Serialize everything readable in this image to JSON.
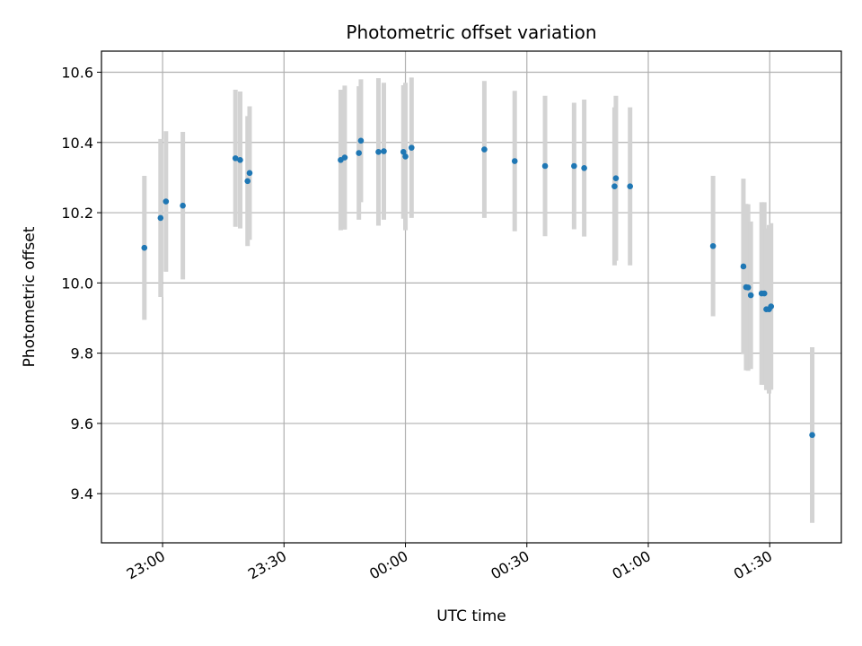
{
  "chart_data": {
    "type": "scatter",
    "title": "Photometric offset variation",
    "xlabel": "UTC time",
    "ylabel": "Photometric offset",
    "grid": true,
    "x_tick_labels": [
      "23:00",
      "23:30",
      "00:00",
      "00:30",
      "01:00",
      "01:30"
    ],
    "x_tick_minutes": [
      1380,
      1410,
      1440,
      1470,
      1500,
      1530
    ],
    "y_ticks": [
      "9.4",
      "9.6",
      "9.8",
      "10.0",
      "10.2",
      "10.4",
      "10.6"
    ],
    "y_tick_values": [
      9.4,
      9.6,
      9.8,
      10.0,
      10.2,
      10.4,
      10.6
    ],
    "xlim_minutes": [
      1364.9,
      1547.7
    ],
    "ylim": [
      9.26,
      10.66
    ],
    "marker_color": "#1f77b4",
    "errorbar_color": "#d3d3d3",
    "points": [
      {
        "t": "22:55:30",
        "y": 10.1,
        "err": 0.205
      },
      {
        "t": "22:59:30",
        "y": 10.185,
        "err": 0.225
      },
      {
        "t": "23:00:50",
        "y": 10.232,
        "err": 0.2
      },
      {
        "t": "23:05:00",
        "y": 10.22,
        "err": 0.21
      },
      {
        "t": "23:18:00",
        "y": 10.355,
        "err": 0.195
      },
      {
        "t": "23:19:10",
        "y": 10.35,
        "err": 0.195
      },
      {
        "t": "23:21:00",
        "y": 10.29,
        "err": 0.185
      },
      {
        "t": "23:21:30",
        "y": 10.313,
        "err": 0.19
      },
      {
        "t": "23:44:00",
        "y": 10.35,
        "err": 0.2
      },
      {
        "t": "23:45:00",
        "y": 10.357,
        "err": 0.205
      },
      {
        "t": "23:48:30",
        "y": 10.37,
        "err": 0.19
      },
      {
        "t": "23:49:00",
        "y": 10.405,
        "err": 0.175
      },
      {
        "t": "23:53:20",
        "y": 10.373,
        "err": 0.21
      },
      {
        "t": "23:54:40",
        "y": 10.375,
        "err": 0.195
      },
      {
        "t": "23:59:30",
        "y": 10.373,
        "err": 0.19
      },
      {
        "t": "24:00:00",
        "y": 10.36,
        "err": 0.21
      },
      {
        "t": "24:01:30",
        "y": 10.385,
        "err": 0.2
      },
      {
        "t": "24:19:30",
        "y": 10.38,
        "err": 0.195
      },
      {
        "t": "24:27:00",
        "y": 10.347,
        "err": 0.2
      },
      {
        "t": "24:34:30",
        "y": 10.333,
        "err": 0.2
      },
      {
        "t": "24:41:40",
        "y": 10.333,
        "err": 0.18
      },
      {
        "t": "24:44:10",
        "y": 10.327,
        "err": 0.195
      },
      {
        "t": "24:51:40",
        "y": 10.275,
        "err": 0.225
      },
      {
        "t": "24:52:00",
        "y": 10.298,
        "err": 0.235
      },
      {
        "t": "24:55:30",
        "y": 10.275,
        "err": 0.225
      },
      {
        "t": "25:16:00",
        "y": 10.105,
        "err": 0.2
      },
      {
        "t": "25:23:30",
        "y": 10.047,
        "err": 0.25
      },
      {
        "t": "25:24:10",
        "y": 9.988,
        "err": 0.237
      },
      {
        "t": "25:24:40",
        "y": 9.987,
        "err": 0.237
      },
      {
        "t": "25:25:20",
        "y": 9.965,
        "err": 0.21
      },
      {
        "t": "25:28:00",
        "y": 9.97,
        "err": 0.26
      },
      {
        "t": "25:28:40",
        "y": 9.97,
        "err": 0.26
      },
      {
        "t": "25:29:10",
        "y": 9.925,
        "err": 0.23
      },
      {
        "t": "25:29:50",
        "y": 9.925,
        "err": 0.24
      },
      {
        "t": "25:30:20",
        "y": 9.933,
        "err": 0.237
      },
      {
        "t": "25:40:30",
        "y": 9.567,
        "err": 0.25
      }
    ]
  }
}
